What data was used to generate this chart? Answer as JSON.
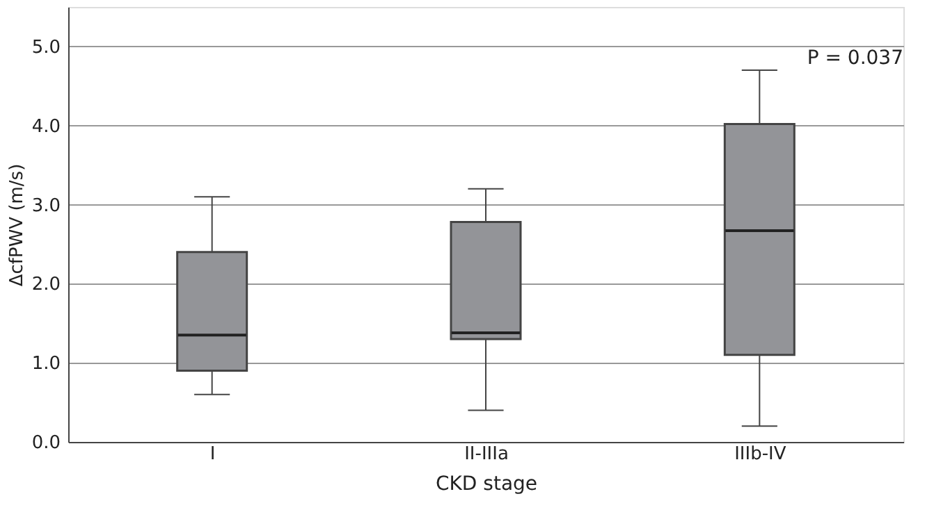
{
  "chart_data": {
    "type": "box",
    "xlabel": "CKD stage",
    "ylabel": "ΔcfPWV (m/s)",
    "categories": [
      "I",
      "II-IIIa",
      "IIIb-IV"
    ],
    "boxes": [
      {
        "low": 0.6,
        "q1": 0.9,
        "median": 1.35,
        "q3": 2.4,
        "high": 3.1
      },
      {
        "low": 0.4,
        "q1": 1.3,
        "median": 1.38,
        "q3": 2.78,
        "high": 3.2
      },
      {
        "low": 0.2,
        "q1": 1.1,
        "median": 2.67,
        "q3": 4.02,
        "high": 4.7
      }
    ],
    "color": "#939498",
    "ylim": [
      0,
      5.5
    ],
    "yticks": [
      {
        "value": 0,
        "label": "0.0"
      },
      {
        "value": 1,
        "label": "1.0"
      },
      {
        "value": 2,
        "label": "2.0"
      },
      {
        "value": 3,
        "label": "3.0"
      },
      {
        "value": 4,
        "label": "4.0"
      },
      {
        "value": 5,
        "label": "5.0"
      }
    ],
    "grid": "y",
    "annotations": [
      "P = 0.037"
    ]
  }
}
